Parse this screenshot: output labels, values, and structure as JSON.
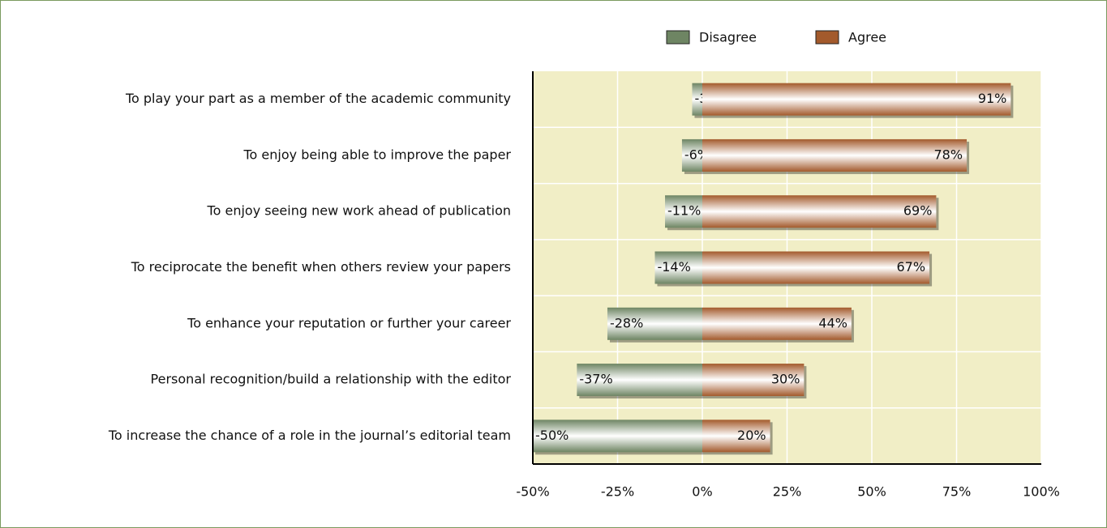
{
  "chart_data": {
    "type": "diverging-bar",
    "categories": [
      "To play your part as a member of the academic community",
      "To enjoy being able to improve the paper",
      "To enjoy seeing new work ahead of publication",
      "To reciprocate the benefit when others review your papers",
      "To enhance your reputation or further your career",
      "Personal recognition/build a relationship with the editor",
      "To increase the chance of a role in the journal’s editorial team"
    ],
    "series": [
      {
        "name": "Disagree",
        "color": "#6e8563",
        "values": [
          -3,
          -6,
          -11,
          -14,
          -28,
          -37,
          -50
        ],
        "value_labels": [
          "-3%",
          "-6%",
          "-11%",
          "-14%",
          "-28%",
          "-37%",
          "-50%"
        ]
      },
      {
        "name": "Agree",
        "color": "#a35a2c",
        "values": [
          91,
          78,
          69,
          67,
          44,
          30,
          20
        ],
        "value_labels": [
          "91%",
          "78%",
          "69%",
          "67%",
          "44%",
          "30%",
          "20%"
        ]
      }
    ],
    "xlim": [
      -50,
      100
    ],
    "xticks": [
      {
        "value": -50,
        "label": "-50%"
      },
      {
        "value": -25,
        "label": "-25%"
      },
      {
        "value": 0,
        "label": "0%"
      },
      {
        "value": 25,
        "label": "25%"
      },
      {
        "value": 50,
        "label": "50%"
      },
      {
        "value": 75,
        "label": "75%"
      },
      {
        "value": 100,
        "label": "100%"
      }
    ],
    "grid": true,
    "legend": "top"
  }
}
